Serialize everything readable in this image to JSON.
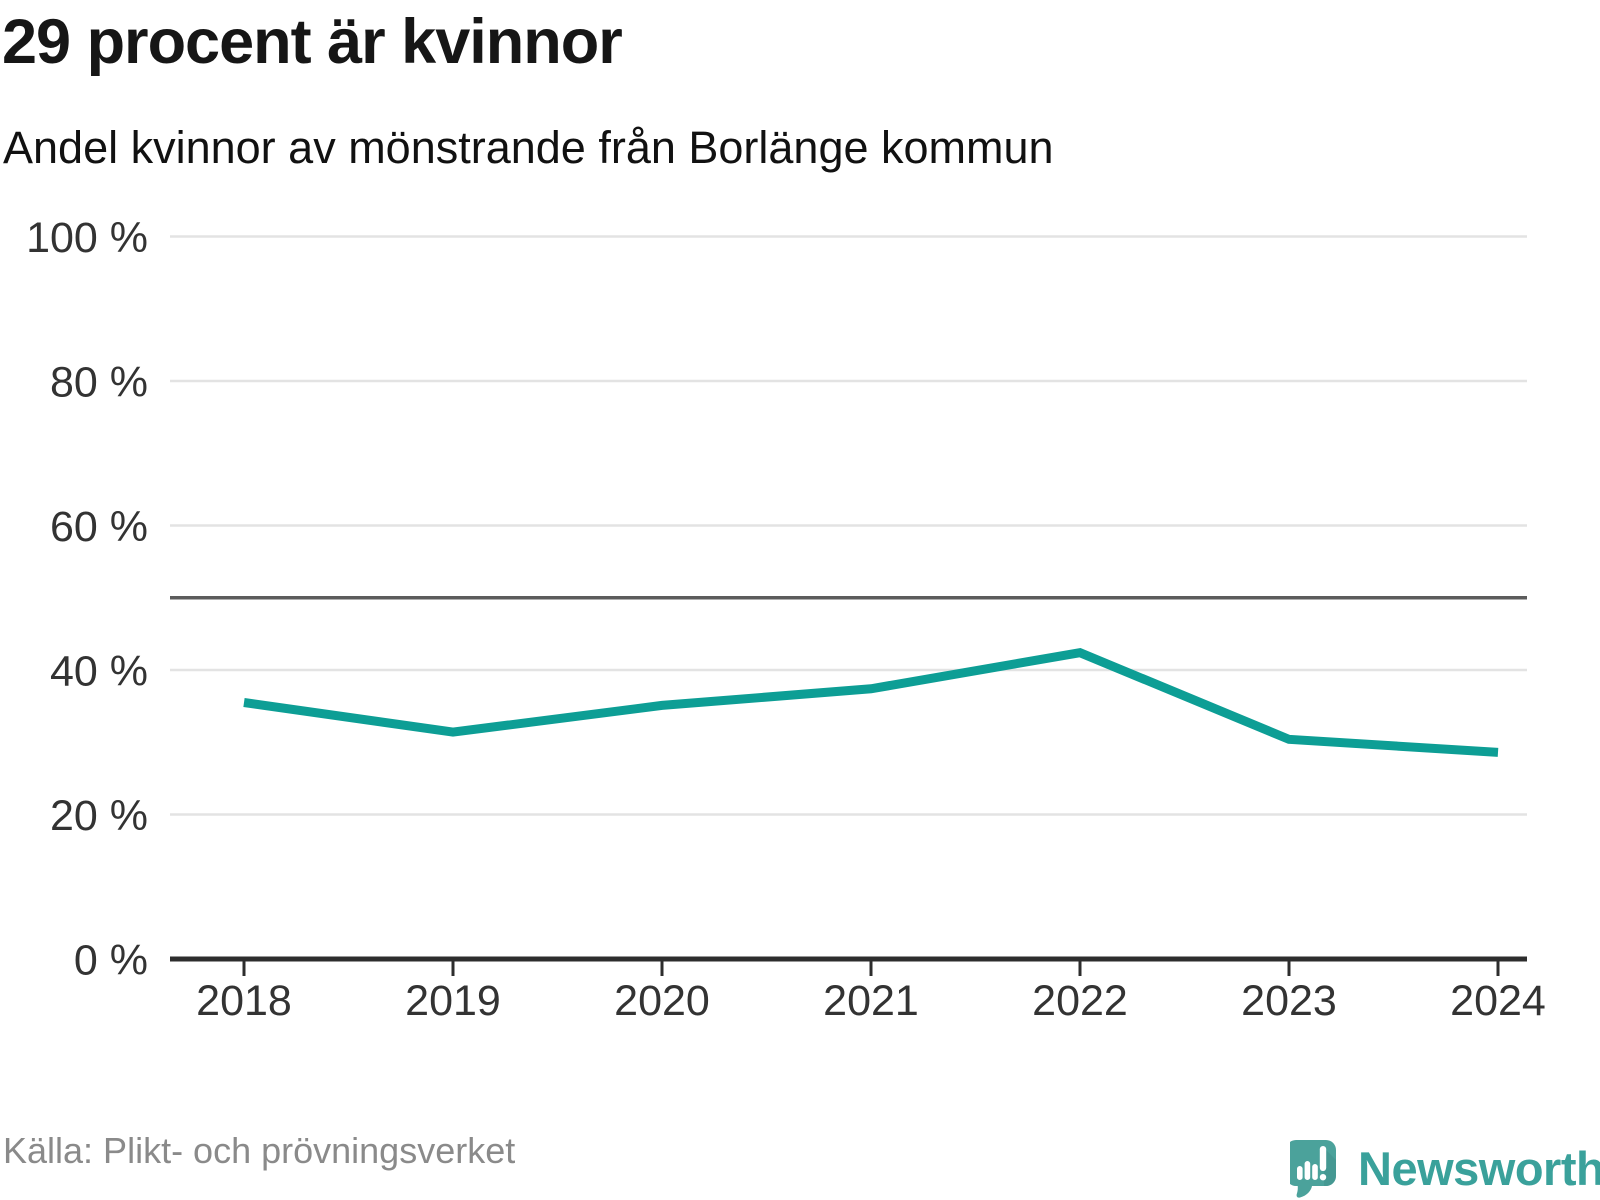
{
  "header": {
    "title": "29 procent är kvinnor",
    "subtitle": "Andel kvinnor av mönstrande från Borlänge kommun"
  },
  "footer": {
    "source": "Källa: Plikt- och prövningsverket",
    "brand": "Newsworthy"
  },
  "chart_data": {
    "type": "line",
    "title": "29 procent är kvinnor",
    "subtitle": "Andel kvinnor av mönstrande från Borlänge kommun",
    "categories": [
      "2018",
      "2019",
      "2020",
      "2021",
      "2022",
      "2023",
      "2024"
    ],
    "series": [
      {
        "name": "Andel kvinnor av mönstrande",
        "values": [
          35.5,
          31.4,
          35.1,
          37.4,
          42.4,
          30.4,
          28.6
        ]
      }
    ],
    "unit": "%",
    "xlabel": "",
    "ylabel": "",
    "ylim": [
      0,
      100
    ],
    "yticks": [
      0,
      20,
      40,
      60,
      80,
      100
    ],
    "ytick_labels": [
      "0 %",
      "20 %",
      "40 %",
      "60 %",
      "80 %",
      "100 %"
    ],
    "reference_line": 50,
    "grid": true,
    "legend_position": "none",
    "line_color": "#0d9e95",
    "gridline_color": "#e3e3e3",
    "reference_line_color": "#5c5c5c",
    "axis_color": "#2d2d2d",
    "source": "Källa: Plikt- och prövningsverket"
  }
}
